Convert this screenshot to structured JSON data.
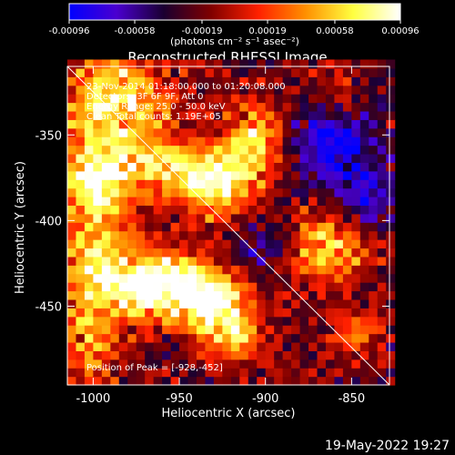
{
  "chart_data": {
    "type": "heatmap",
    "title": "Reconstructed RHESSI Image",
    "xlabel": "Heliocentric X (arcsec)",
    "ylabel": "Heliocentric Y (arcsec)",
    "xlim": [
      -1015,
      -828
    ],
    "ylim": [
      -496,
      -310
    ],
    "x_ticks": [
      -1000,
      -950,
      -900,
      -850
    ],
    "y_ticks": [
      -350,
      -400,
      -450
    ],
    "x_tick_labels": [
      "-1000",
      "-950",
      "-900",
      "-850"
    ],
    "y_tick_labels": [
      "-350",
      "-400",
      "-450"
    ],
    "colorbar": {
      "label": "(photons cm⁻² s⁻¹ asec⁻²)",
      "range": [
        -0.00096,
        0.00096
      ],
      "ticks": [
        -0.00096,
        -0.00058,
        -0.00019,
        0.00019,
        0.00058,
        0.00096
      ],
      "tick_labels": [
        "-0.00096",
        "-0.00058",
        "-0.00019",
        "0.00019",
        "0.00058",
        "0.00096"
      ],
      "colors": [
        "#0000ff",
        "#4a00d0",
        "#1a0030",
        "#800000",
        "#ff2000",
        "#ff9000",
        "#ffff40",
        "#ffffff"
      ]
    },
    "annotations": [
      "23-Nov-2014 01:18:00.000 to 01:20:08.000",
      "Detectors: 3F 6F 9F, Att 0",
      "Energy Range: 25.0 - 50.0 keV",
      "Clean    Total counts: 1.19E+05"
    ],
    "peak_label": "Position of Peak = [-928,-452]",
    "peak": [
      -928,
      -452
    ],
    "limb_line": [
      [
        -1015,
        -310
      ],
      [
        -828,
        -496
      ]
    ],
    "hot_regions": [
      {
        "x": -985,
        "y": -330,
        "sx": 22,
        "sy": 22,
        "v": 0.00085
      },
      {
        "x": -1000,
        "y": -385,
        "sx": 14,
        "sy": 26,
        "v": 0.0009
      },
      {
        "x": -955,
        "y": -370,
        "sx": 30,
        "sy": 12,
        "v": 0.0007
      },
      {
        "x": -925,
        "y": -380,
        "sx": 14,
        "sy": 14,
        "v": 0.0009
      },
      {
        "x": -905,
        "y": -350,
        "sx": 12,
        "sy": 14,
        "v": 0.00075
      },
      {
        "x": -985,
        "y": -435,
        "sx": 30,
        "sy": 16,
        "v": 0.0009
      },
      {
        "x": -950,
        "y": -440,
        "sx": 22,
        "sy": 12,
        "v": 0.00085
      },
      {
        "x": -928,
        "y": -452,
        "sx": 12,
        "sy": 12,
        "v": 0.00096
      },
      {
        "x": -915,
        "y": -470,
        "sx": 12,
        "sy": 10,
        "v": 0.00055
      },
      {
        "x": -1003,
        "y": -475,
        "sx": 12,
        "sy": 16,
        "v": 0.0006
      },
      {
        "x": -865,
        "y": -415,
        "sx": 18,
        "sy": 14,
        "v": 0.00085
      },
      {
        "x": -860,
        "y": -325,
        "sx": 10,
        "sy": 12,
        "v": 0.0004
      },
      {
        "x": -848,
        "y": -465,
        "sx": 10,
        "sy": 10,
        "v": 0.00045
      }
    ],
    "cold_regions": [
      {
        "x": -860,
        "y": -355,
        "sx": 18,
        "sy": 20,
        "v": -0.0007
      },
      {
        "x": -840,
        "y": -390,
        "sx": 10,
        "sy": 14,
        "v": -0.0005
      },
      {
        "x": -900,
        "y": -415,
        "sx": 16,
        "sy": 14,
        "v": -0.0004
      }
    ]
  },
  "footer": {
    "date": "19-May-2022 19:27"
  }
}
